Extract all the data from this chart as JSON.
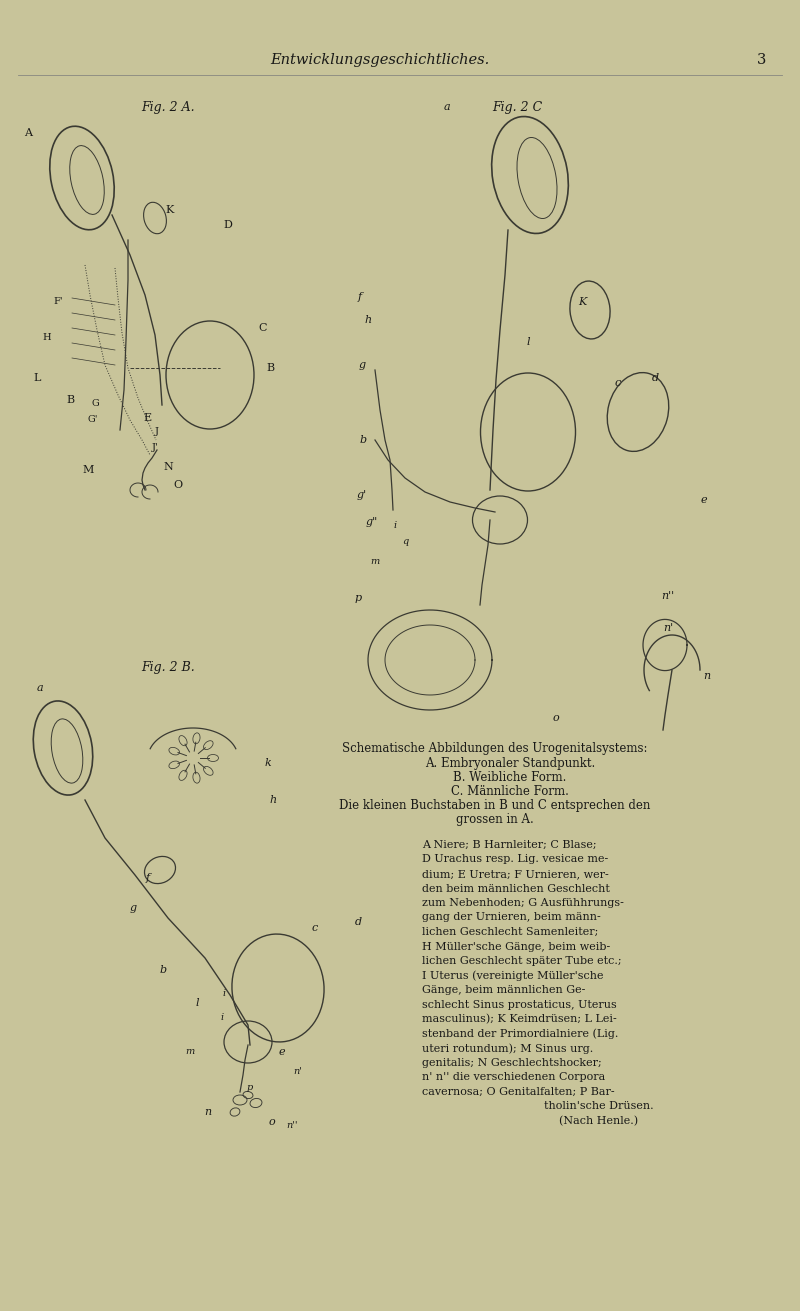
{
  "bg_color": "#c8c49a",
  "text_color": "#1a1a18",
  "line_color": "#3a3a32",
  "header": "Entwicklungsgeschichtliches.",
  "page_num": "3",
  "fig2a_lbl": "Fig. 2 A.",
  "fig2b_lbl": "Fig. 2 B.",
  "fig2c_lbl": "Fig. 2 C",
  "caption_title": "Schematische Abbildungen des Urogenitalsystems:",
  "caption_lines": [
    "A. Embryonaler Standpunkt.",
    "B. Weibliche Form.",
    "C. Männliche Form.",
    "Die kleinen Buchstaben in B und C entsprechen den",
    "grossen in A."
  ],
  "legend_lines": [
    "A Niere; B Harnleiter; C Blase;",
    "D Urachus resp. Lig. vesicae me-",
    "dium; E Uretra; F Urnieren, wer-",
    "den beim männlichen Geschlecht",
    "zum Nebenhoden; G Ausfühhrungs-",
    "gang der Urnieren, beim männ-",
    "lichen Geschlecht Samenleiter;",
    "H Müller'sche Gänge, beim weib-",
    "lichen Geschlecht später Tube etc.;",
    "I Uterus (vereinigte Müller'sche",
    "Gänge, beim männlichen Ge-",
    "schlecht Sinus prostaticus, Uterus",
    "masculinus); K Keimdrüsen; L Lei-",
    "stenband der Primordialniere (Lig.",
    "uteri rotundum); M Sinus urg.",
    "genitalis; N Geschlechtshocker;",
    "n' n'' die verschiedenen Corpora",
    "cavernosa; O Genitalfalten; P Bar-",
    "tholin'sche Drüsen.",
    "(Nach Henle.)"
  ]
}
